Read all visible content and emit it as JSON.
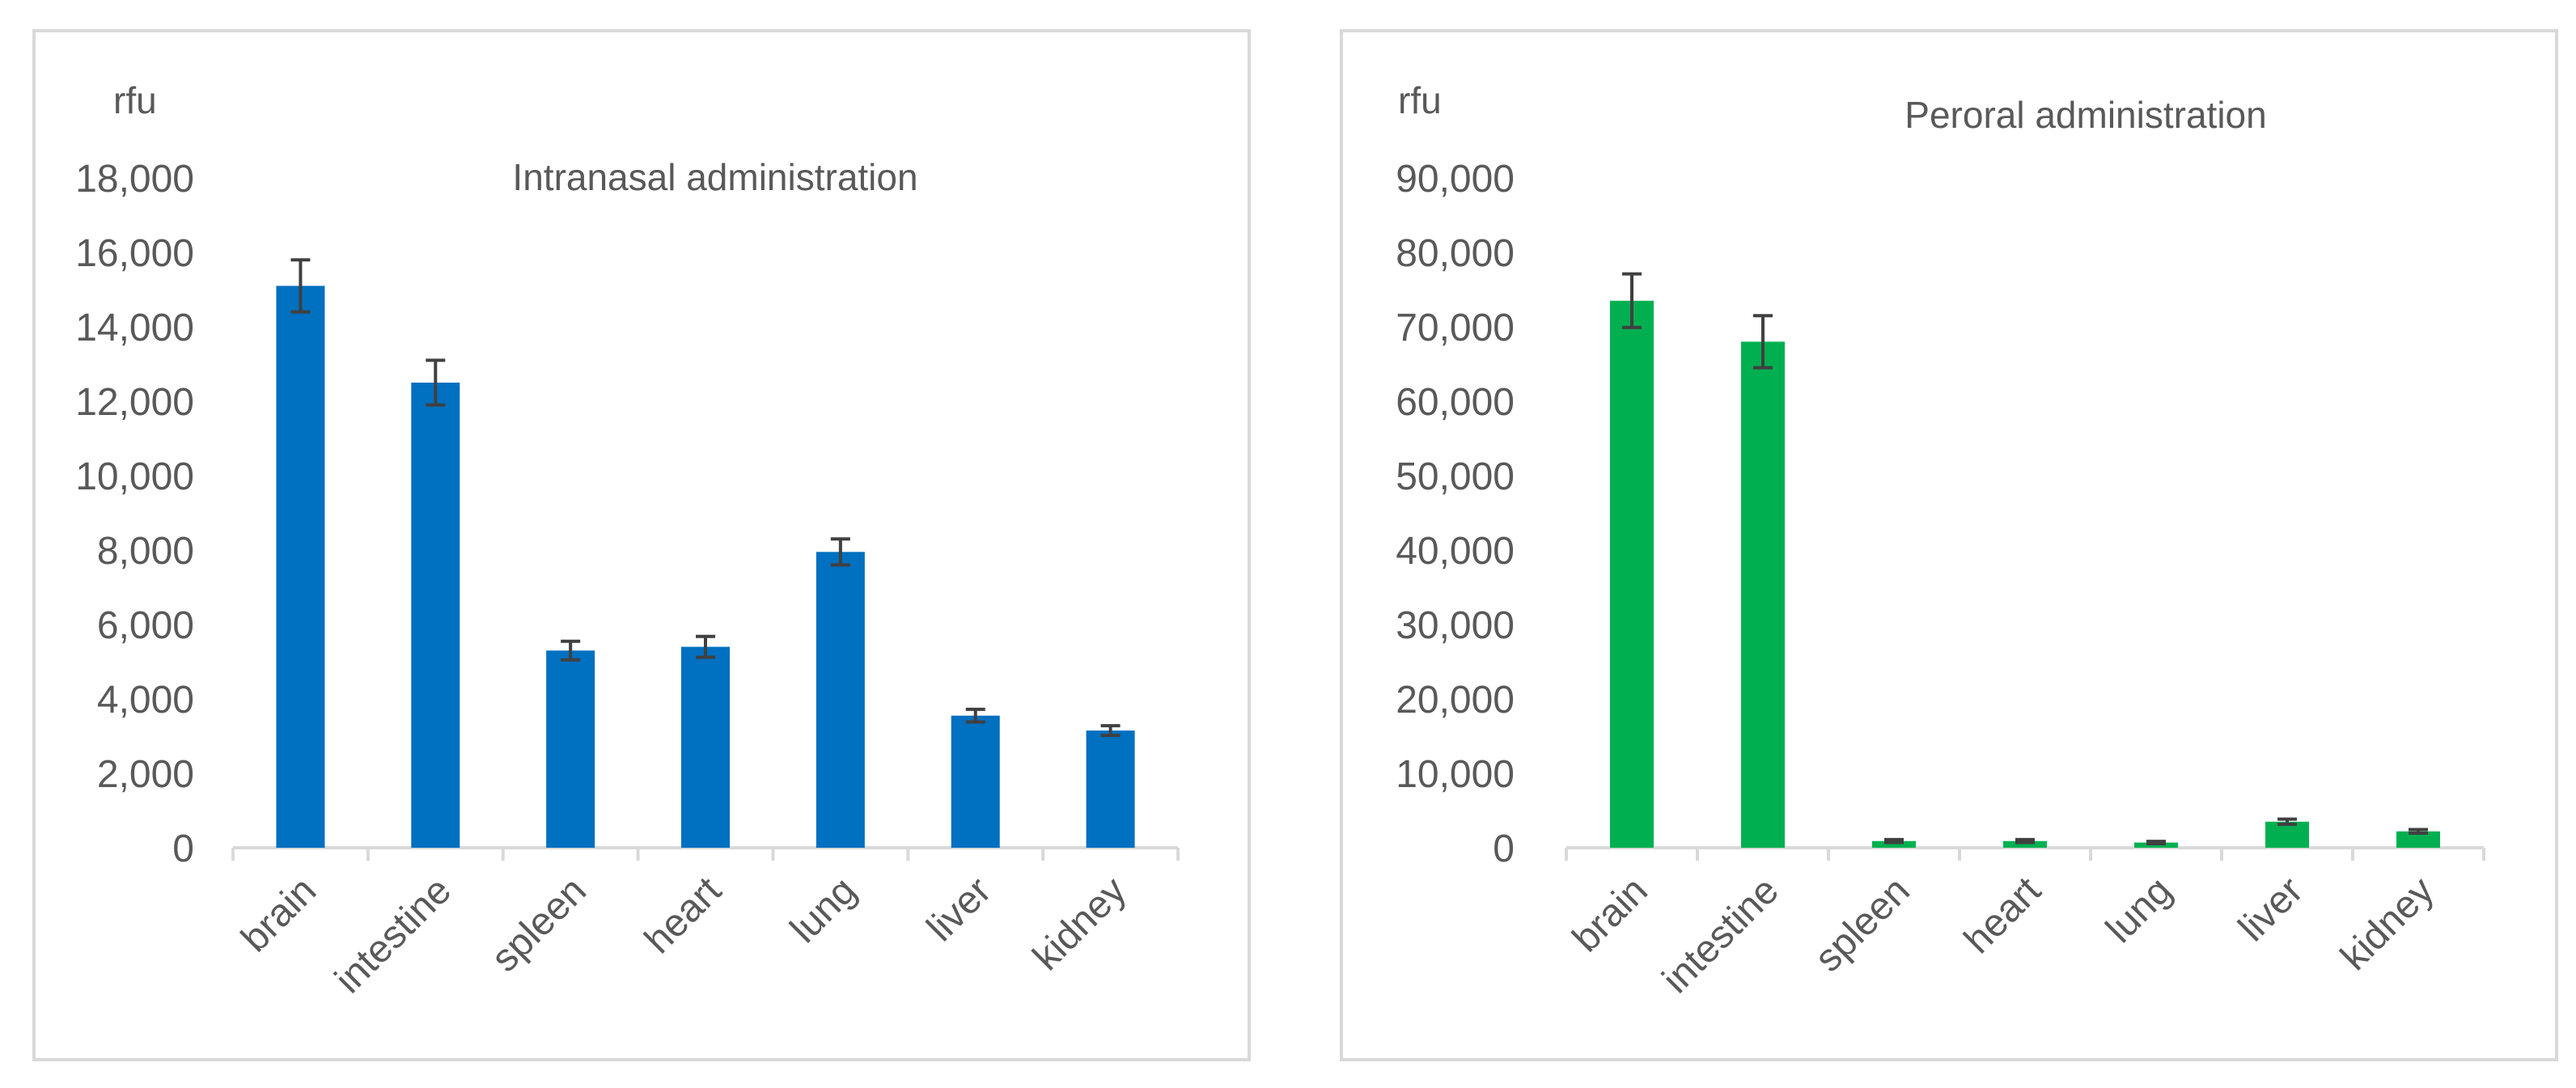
{
  "chart_data": [
    {
      "type": "bar",
      "title": "Intranasal administration",
      "ylabel": "rfu",
      "xlabel": "",
      "categories": [
        "brain",
        "intestine",
        "spleen",
        "heart",
        "lung",
        "liver",
        "kidney"
      ],
      "values": [
        15100,
        12500,
        5300,
        5400,
        7950,
        3550,
        3150
      ],
      "errors": [
        700,
        600,
        250,
        280,
        350,
        170,
        130
      ],
      "ylim": [
        0,
        18000
      ],
      "yticks": [
        0,
        2000,
        4000,
        6000,
        8000,
        10000,
        12000,
        14000,
        16000,
        18000
      ],
      "ytick_labels": [
        "0",
        "2,000",
        "4,000",
        "6,000",
        "8,000",
        "10,000",
        "12,000",
        "14,000",
        "16,000",
        "18,000"
      ],
      "color": "#0070c0",
      "grid": false,
      "legend": "none"
    },
    {
      "type": "bar",
      "title": "Peroral administration",
      "ylabel": "rfu",
      "xlabel": "",
      "categories": [
        "brain",
        "intestine",
        "spleen",
        "heart",
        "lung",
        "liver",
        "kidney"
      ],
      "values": [
        73500,
        68000,
        900,
        900,
        700,
        3500,
        2200
      ],
      "errors": [
        3600,
        3500,
        200,
        200,
        150,
        350,
        250
      ],
      "ylim": [
        0,
        90000
      ],
      "yticks": [
        0,
        10000,
        20000,
        30000,
        40000,
        50000,
        60000,
        70000,
        80000,
        90000
      ],
      "ytick_labels": [
        "0",
        "10,000",
        "20,000",
        "30,000",
        "40,000",
        "50,000",
        "60,000",
        "70,000",
        "80,000",
        "90,000"
      ],
      "color": "#00b050",
      "grid": false,
      "legend": "none"
    }
  ]
}
